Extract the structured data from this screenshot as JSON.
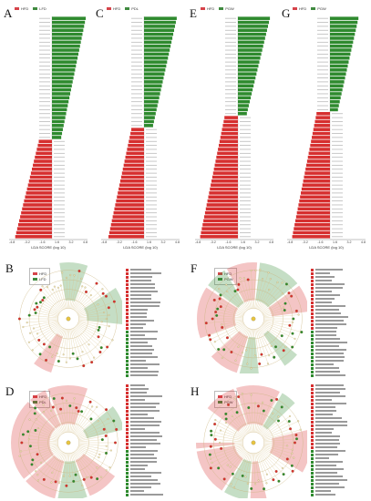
{
  "colors": {
    "group_a": "#d62f2f",
    "group_b": "#2e8a2e",
    "hfd_legend": "#d6434a",
    "green_legend": "#3f8a3f"
  },
  "panels": {
    "A": {
      "label": "A",
      "legend": [
        "HFD",
        "LFD"
      ],
      "xlabel": "LDA SCORE (log 10)",
      "ticks": [
        "-4.8",
        "-4.0",
        "-3.2",
        "-2.4",
        "-1.6",
        "0.0",
        "1.6",
        "2.4",
        "3.2",
        "4.0",
        "4.8"
      ]
    },
    "C": {
      "label": "C",
      "legend": [
        "HFD",
        "PDL"
      ],
      "xlabel": "LDA SCORE (log 10)",
      "ticks": [
        "-4.8",
        "-4.0",
        "-3.2",
        "-2.4",
        "-1.6",
        "0.0",
        "1.6",
        "2.4",
        "3.2",
        "4.0",
        "4.8"
      ]
    },
    "E": {
      "label": "E",
      "legend": [
        "HFD",
        "PGW"
      ],
      "xlabel": "LDA SCORE (log 10)",
      "ticks": [
        "-4.8",
        "-4.0",
        "-3.2",
        "-2.4",
        "-1.6",
        "0.0",
        "1.6",
        "2.4",
        "3.2",
        "4.0",
        "4.8"
      ]
    },
    "G": {
      "label": "G",
      "legend": [
        "HFD",
        "PGW"
      ],
      "xlabel": "LDA SCORE (log 10)",
      "ticks": [
        "-4.8",
        "-4.0",
        "-3.2",
        "-2.4",
        "-1.6",
        "0.0",
        "1.6",
        "2.4",
        "3.2",
        "4.0",
        "4.8"
      ]
    },
    "B": {
      "label": "B",
      "legend": [
        "HFD",
        "LFD"
      ]
    },
    "F": {
      "label": "F",
      "legend": [
        "HFD",
        "PGW"
      ]
    },
    "D": {
      "label": "D",
      "legend": [
        "HFD",
        "PDL"
      ]
    },
    "H": {
      "label": "H",
      "legend": [
        "HFD",
        "PGW"
      ]
    }
  }
}
